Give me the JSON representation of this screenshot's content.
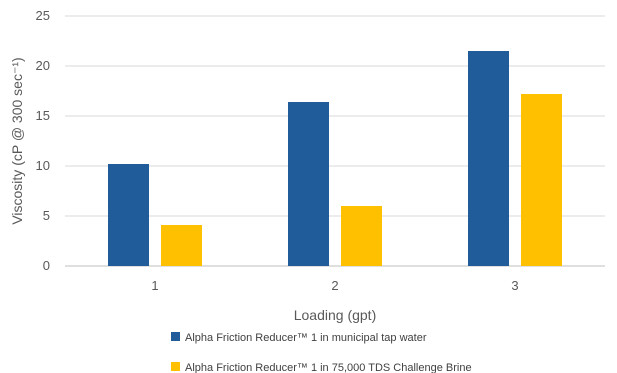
{
  "chart_data": {
    "type": "bar",
    "categories": [
      "1",
      "2",
      "3"
    ],
    "series": [
      {
        "name": "Alpha Friction Reducer™ 1 in municipal tap water",
        "values": [
          10.2,
          16.4,
          21.5
        ],
        "color": "#1f5c99"
      },
      {
        "name": "Alpha Friction Reducer™ 1 in 75,000 TDS Challenge Brine",
        "values": [
          4.1,
          6.0,
          17.2
        ],
        "color": "#ffc000"
      }
    ],
    "xlabel": "Loading (gpt)",
    "ylabel": "Viscosity (cP @ 300 sec⁻¹)",
    "ylim": [
      0,
      25
    ],
    "yticks": [
      0,
      5,
      10,
      15,
      20,
      25
    ],
    "grid": true,
    "legend_position": "bottom"
  }
}
